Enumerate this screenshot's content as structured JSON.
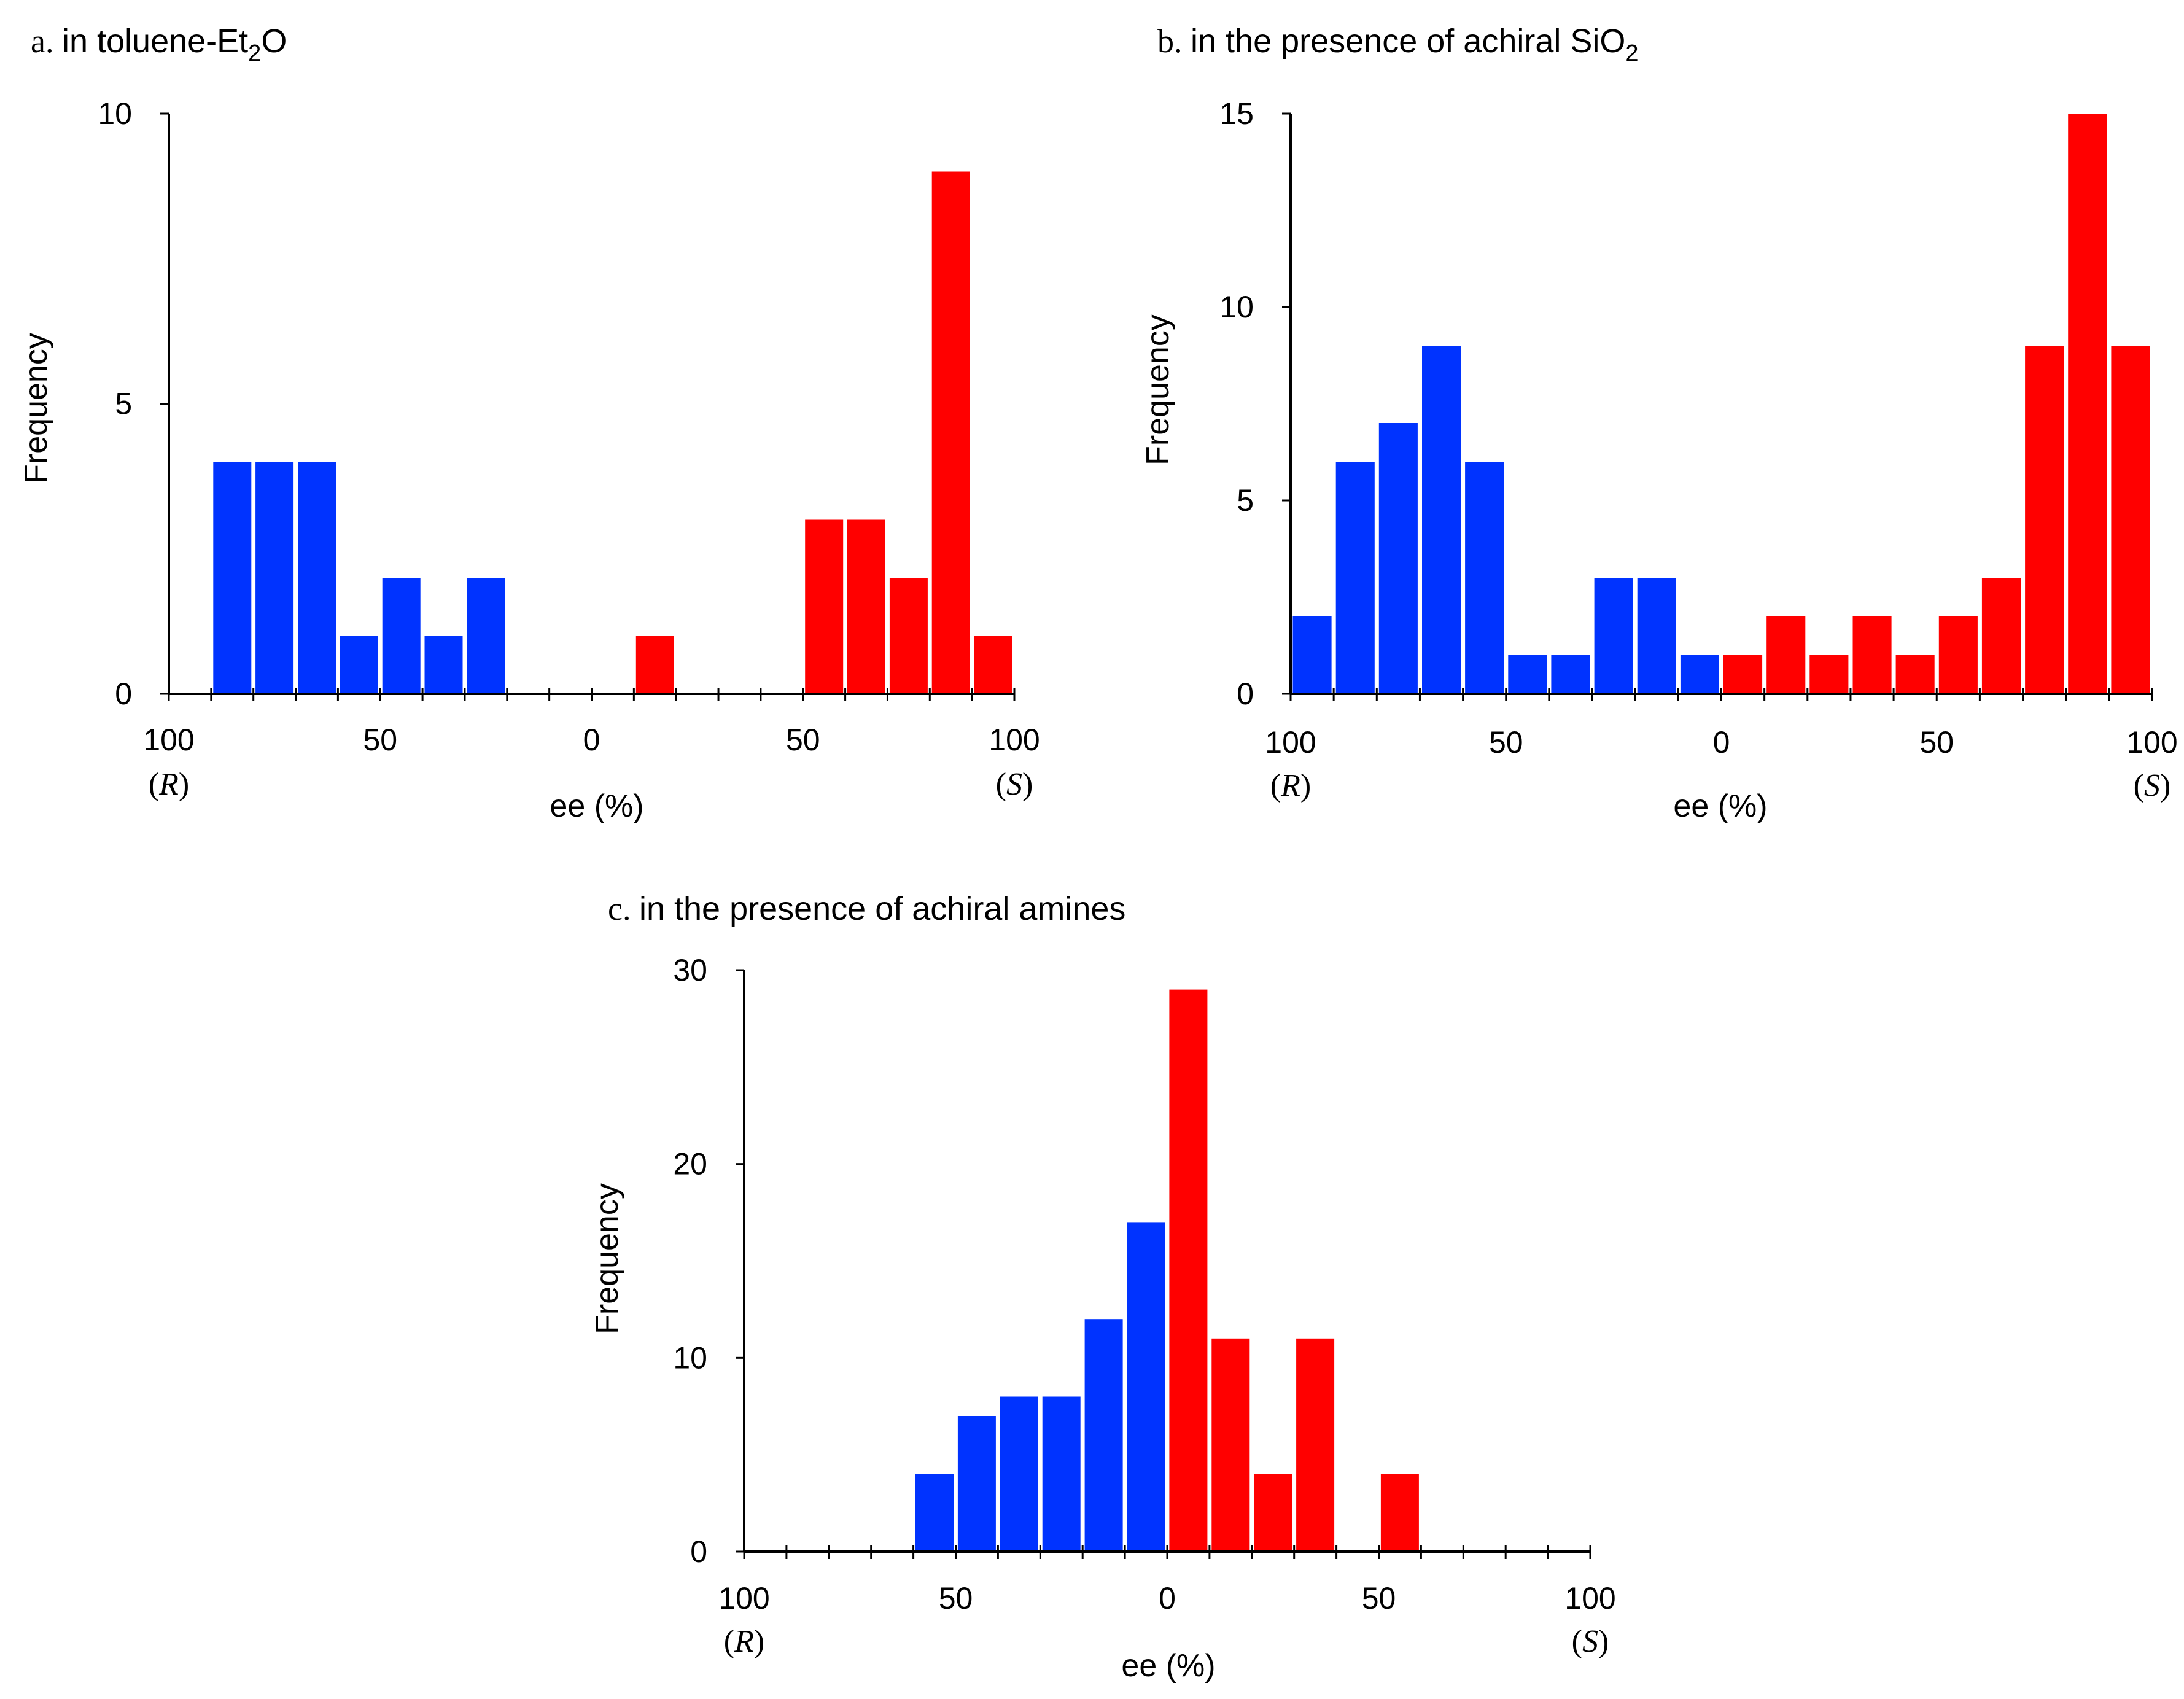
{
  "colors": {
    "r_bar": "#0033ff",
    "s_bar": "#ff0000",
    "axis": "#000000"
  },
  "chart_data": [
    {
      "id": "a",
      "type": "bar",
      "title_prefix": "a",
      "title_text": "in toluene-Et",
      "title_sub": "2",
      "title_suffix": "O",
      "ylabel": "Frequency",
      "xlabel": "ee (%)",
      "ylim": [
        0,
        10
      ],
      "yticks": [
        0,
        5,
        10
      ],
      "xticks": [
        100,
        50,
        0,
        50,
        100
      ],
      "x_config_left": "R",
      "x_config_right": "S",
      "bin_width": 10,
      "r_series": {
        "name": "R",
        "bin_centers": [
          -95,
          -85,
          -75,
          -65,
          -55,
          -45,
          -35,
          -25,
          -15,
          -5
        ],
        "values": [
          0,
          4,
          4,
          4,
          1,
          2,
          1,
          2,
          0,
          0
        ]
      },
      "s_series": {
        "name": "S",
        "bin_centers": [
          5,
          15,
          25,
          35,
          45,
          55,
          65,
          75,
          85,
          95
        ],
        "values": [
          0,
          1,
          0,
          0,
          0,
          3,
          3,
          2,
          9,
          1
        ]
      }
    },
    {
      "id": "b",
      "type": "bar",
      "title_prefix": "b",
      "title_text": "in the presence of achiral SiO",
      "title_sub": "2",
      "title_suffix": "",
      "ylabel": "Frequency",
      "xlabel": "ee (%)",
      "ylim": [
        0,
        15
      ],
      "yticks": [
        0,
        5,
        10,
        15
      ],
      "xticks": [
        100,
        50,
        0,
        50,
        100
      ],
      "x_config_left": "R",
      "x_config_right": "S",
      "bin_width": 10,
      "r_series": {
        "name": "R",
        "bin_centers": [
          -95,
          -85,
          -75,
          -65,
          -55,
          -45,
          -35,
          -25,
          -15,
          -5
        ],
        "values": [
          2,
          6,
          7,
          9,
          6,
          1,
          1,
          3,
          3,
          1
        ]
      },
      "s_series": {
        "name": "S",
        "bin_centers": [
          5,
          15,
          25,
          35,
          45,
          55,
          65,
          75,
          85,
          95
        ],
        "values": [
          1,
          2,
          1,
          2,
          1,
          2,
          3,
          9,
          15,
          9
        ]
      }
    },
    {
      "id": "c",
      "type": "bar",
      "title_prefix": "c",
      "title_text": "in the presence of achiral amines",
      "title_sub": "",
      "title_suffix": "",
      "ylabel": "Frequency",
      "xlabel": "ee (%)",
      "ylim": [
        0,
        30
      ],
      "yticks": [
        0,
        10,
        20,
        30
      ],
      "xticks": [
        100,
        50,
        0,
        50,
        100
      ],
      "x_config_left": "R",
      "x_config_right": "S",
      "bin_width": 10,
      "r_series": {
        "name": "R",
        "bin_centers": [
          -95,
          -85,
          -75,
          -65,
          -55,
          -45,
          -35,
          -25,
          -15,
          -5
        ],
        "values": [
          0,
          0,
          0,
          0,
          4,
          7,
          8,
          8,
          12,
          17
        ]
      },
      "s_series": {
        "name": "S",
        "bin_centers": [
          5,
          15,
          25,
          35,
          45,
          55,
          65,
          75,
          85,
          95
        ],
        "values": [
          29,
          11,
          4,
          11,
          0,
          4,
          0,
          0,
          0,
          0
        ]
      }
    }
  ]
}
